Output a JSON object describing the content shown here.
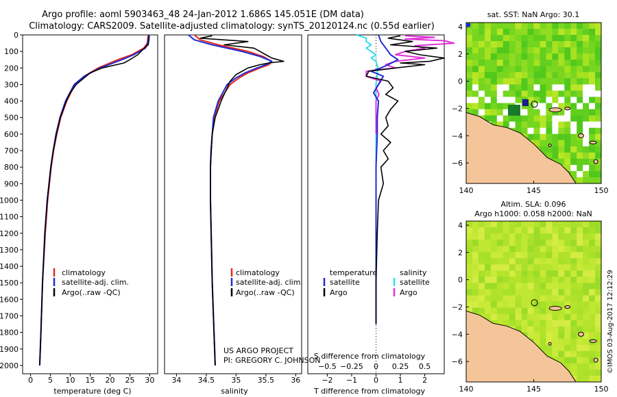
{
  "header": {
    "line1": "Argo profile: aoml 5903463_48 24-Jan-2012 1.686S 145.051E (DM data)",
    "line2": "Climatology: CARS2009. Satellite-adjusted climatology: synTS_20120124.nc (0.55d earlier)"
  },
  "colors": {
    "climatology": "#e8251c",
    "satellite": "#1f2bd4",
    "argo": "#000000",
    "sal_satellite": "#30e0e8",
    "sal_argo": "#e030d8",
    "land": "#f5c59a"
  },
  "chart_data": [
    {
      "type": "line",
      "id": "temperature",
      "xlabel": "temperature (deg C)",
      "ylabel": "",
      "xlim": [
        -2,
        32
      ],
      "ylim": [
        2050,
        0
      ],
      "xticks": [
        0,
        5,
        10,
        15,
        20,
        25,
        30
      ],
      "xtick_labels": [
        "0",
        "5",
        "10",
        "15",
        "20",
        "25",
        "30"
      ],
      "yticks": [
        0,
        100,
        200,
        300,
        400,
        500,
        600,
        700,
        800,
        900,
        1000,
        1100,
        1200,
        1300,
        1400,
        1500,
        1600,
        1700,
        1800,
        1900,
        2000
      ],
      "ytick_labels": [
        "0",
        "100",
        "200",
        "300",
        "400",
        "500",
        "600",
        "700",
        "800",
        "900",
        "1000",
        "1100",
        "1200",
        "1300",
        "1400",
        "1500",
        "1600",
        "1700",
        "1800",
        "1900",
        "2000"
      ],
      "legend": [
        "climatology",
        "satellite-adj. clim.",
        "Argo(..raw -QC)"
      ],
      "series": [
        {
          "name": "climatology",
          "depth": [
            0,
            50,
            80,
            120,
            150,
            200,
            250,
            300,
            400,
            500,
            600,
            700,
            800,
            1000,
            1200,
            1500,
            1800,
            2000
          ],
          "values": [
            29.6,
            29.4,
            28.5,
            25.5,
            22.0,
            17.0,
            13.5,
            11.2,
            9.1,
            7.6,
            6.6,
            5.8,
            5.2,
            4.3,
            3.7,
            3.0,
            2.6,
            2.3
          ]
        },
        {
          "name": "satellite-adj. clim.",
          "depth": [
            0,
            50,
            80,
            120,
            150,
            200,
            250,
            300,
            400,
            500,
            600,
            700,
            800,
            1000,
            1200,
            1500,
            1800,
            2000
          ],
          "values": [
            29.8,
            29.5,
            28.9,
            26.0,
            23.0,
            17.5,
            13.5,
            11.0,
            8.8,
            7.4,
            6.4,
            5.7,
            5.1,
            4.2,
            3.6,
            3.0,
            2.6,
            2.3
          ]
        },
        {
          "name": "Argo(..raw -QC)",
          "depth": [
            5,
            30,
            60,
            90,
            120,
            150,
            170,
            200,
            230,
            260,
            300,
            350,
            400,
            500,
            600,
            700,
            800,
            1000,
            1200,
            1500,
            1800,
            2000
          ],
          "values": [
            29.9,
            29.8,
            29.6,
            28.2,
            27.0,
            25.0,
            23.5,
            18.0,
            15.0,
            13.5,
            11.5,
            10.0,
            9.0,
            7.5,
            6.5,
            5.7,
            5.1,
            4.2,
            3.6,
            3.0,
            2.6,
            2.3
          ]
        }
      ]
    },
    {
      "type": "line",
      "id": "salinity",
      "xlabel": "salinity",
      "ylabel": "",
      "xlim": [
        33.8,
        36.1
      ],
      "ylim": [
        2050,
        0
      ],
      "xticks": [
        34,
        34.5,
        35,
        35.5,
        36
      ],
      "xtick_labels": [
        "34",
        "34.5",
        "35",
        "35.5",
        "36"
      ],
      "legend": [
        "climatology",
        "satellite-adj. clim.",
        "Argo(..raw -QC)"
      ],
      "series": [
        {
          "name": "climatology",
          "depth": [
            0,
            30,
            60,
            100,
            130,
            160,
            180,
            200,
            230,
            260,
            300,
            400,
            500,
            600,
            700,
            800,
            1000,
            1500,
            2000
          ],
          "values": [
            34.3,
            34.4,
            34.7,
            35.2,
            35.45,
            35.6,
            35.55,
            35.4,
            35.2,
            35.05,
            34.9,
            34.72,
            34.63,
            34.6,
            34.58,
            34.57,
            34.57,
            34.6,
            34.65
          ]
        },
        {
          "name": "satellite-adj. clim.",
          "depth": [
            0,
            30,
            60,
            100,
            130,
            160,
            180,
            200,
            230,
            260,
            300,
            400,
            500,
            600,
            700,
            800,
            1000,
            1500,
            2000
          ],
          "values": [
            34.2,
            34.3,
            34.6,
            35.1,
            35.4,
            35.6,
            35.5,
            35.35,
            35.15,
            35.0,
            34.85,
            34.7,
            34.62,
            34.6,
            34.58,
            34.57,
            34.57,
            34.6,
            34.65
          ]
        },
        {
          "name": "Argo(..raw -QC)",
          "depth": [
            5,
            20,
            40,
            60,
            80,
            100,
            120,
            140,
            160,
            170,
            180,
            200,
            240,
            280,
            320,
            400,
            500,
            600,
            800,
            1000,
            1500,
            2000
          ],
          "values": [
            34.6,
            34.4,
            35.2,
            34.8,
            35.3,
            35.4,
            35.5,
            35.6,
            35.8,
            35.55,
            35.4,
            35.2,
            35.0,
            34.9,
            34.85,
            34.75,
            34.65,
            34.6,
            34.57,
            34.57,
            34.6,
            34.65
          ]
        }
      ]
    },
    {
      "type": "line",
      "id": "differences",
      "xlabel": "T difference from climatology",
      "x2label": "S difference from climatology",
      "xlim": [
        -2.8,
        2.8
      ],
      "ylim": [
        2050,
        0
      ],
      "xticks": [
        -2,
        -1,
        0,
        1,
        2
      ],
      "xtick_labels": [
        "−2",
        "−1",
        "0",
        "1",
        "2"
      ],
      "x2ticks": [
        -0.5,
        -0.25,
        0,
        0.25,
        0.5
      ],
      "x2tick_labels": [
        "−0.5",
        "−0.25",
        "0",
        "0.25",
        "0.5"
      ],
      "legend_temperature": {
        "title": "temperature",
        "items": [
          "satellite",
          "Argo"
        ]
      },
      "legend_salinity": {
        "title": "salinity",
        "items": [
          "satellite",
          "Argo"
        ]
      },
      "series": [
        {
          "name": "temperature satellite",
          "depth": [
            0,
            40,
            80,
            120,
            150,
            180,
            200,
            220,
            250,
            300,
            350,
            400,
            500,
            600,
            800,
            1000,
            1500,
            1750
          ],
          "values": [
            0.1,
            0.2,
            0.4,
            0.6,
            0.9,
            0.5,
            0.2,
            -0.2,
            0.3,
            0.1,
            -0.1,
            0.1,
            0.05,
            0.05,
            0.0,
            0.0,
            0.0,
            0.0
          ]
        },
        {
          "name": "temperature Argo",
          "depth": [
            5,
            20,
            40,
            60,
            80,
            100,
            120,
            140,
            160,
            170,
            180,
            200,
            220,
            250,
            280,
            320,
            360,
            400,
            450,
            500,
            550,
            600,
            650,
            700,
            750,
            800,
            900,
            1000,
            1200,
            1500,
            1750
          ],
          "values": [
            1.0,
            0.5,
            1.5,
            0.6,
            2.5,
            1.2,
            1.8,
            2.8,
            2.2,
            1.0,
            2.0,
            0.8,
            -0.3,
            -0.4,
            0.5,
            0.7,
            0.4,
            0.9,
            0.6,
            0.4,
            0.5,
            0.2,
            0.6,
            0.3,
            0.5,
            0.2,
            0.3,
            0.1,
            0.05,
            0.0,
            0.0
          ]
        },
        {
          "name": "salinity satellite",
          "depth": [
            0,
            20,
            40,
            60,
            80,
            100,
            120,
            140,
            160,
            200,
            250,
            300,
            400,
            500,
            600,
            800,
            1000,
            1500,
            1750
          ],
          "values": [
            -0.2,
            -0.1,
            -0.1,
            -0.05,
            -0.1,
            -0.05,
            0.0,
            -0.05,
            0.0,
            0.02,
            0.01,
            0.0,
            0.0,
            0.0,
            0.0,
            0.0,
            0.0,
            0.0,
            0.0
          ]
        },
        {
          "name": "salinity Argo",
          "depth": [
            5,
            15,
            25,
            35,
            50,
            65,
            80,
            100,
            120,
            140,
            160,
            180,
            200,
            220,
            250,
            280,
            320,
            360,
            400,
            500,
            600
          ],
          "values": [
            0.3,
            0.6,
            0.3,
            0.7,
            0.8,
            0.4,
            0.5,
            0.3,
            0.2,
            0.5,
            0.2,
            0.1,
            0.2,
            -0.1,
            -0.1,
            0.05,
            0.0,
            0.03,
            0.0,
            0.0,
            0.0
          ]
        }
      ]
    },
    {
      "type": "heatmap",
      "id": "sst_map",
      "title": "sat. SST: NaN Argo: 30.1",
      "xlim": [
        140,
        150
      ],
      "ylim": [
        -7.5,
        4.3
      ],
      "xticks": [
        140,
        145,
        150
      ],
      "xtick_labels": [
        "140",
        "145",
        "150"
      ],
      "yticks": [
        4,
        2,
        0,
        -2,
        -4,
        -6
      ],
      "ytick_labels": [
        "4",
        "2",
        "0",
        "−2",
        "−4",
        "−6"
      ],
      "argo_position": [
        145.051,
        -1.686
      ]
    },
    {
      "type": "heatmap",
      "id": "sla_map",
      "title_line1": "Altim. SLA: 0.096",
      "title_line2": "Argo h1000: 0.058 h2000: NaN",
      "xlim": [
        140,
        150
      ],
      "ylim": [
        -7.5,
        4.3
      ],
      "xticks": [
        140,
        145,
        150
      ],
      "xtick_labels": [
        "140",
        "145",
        "150"
      ],
      "yticks": [
        4,
        2,
        0,
        -2,
        -4,
        -6
      ],
      "ytick_labels": [
        "4",
        "2",
        "0",
        "−2",
        "−4",
        "−6"
      ],
      "argo_position": [
        145.051,
        -1.686
      ]
    }
  ],
  "project": {
    "line1": "US ARGO PROJECT",
    "line2": "PI: GREGORY C. JOHNSON"
  },
  "footer": {
    "credit": "©IMOS 03-Aug-2017 12:12:29"
  }
}
